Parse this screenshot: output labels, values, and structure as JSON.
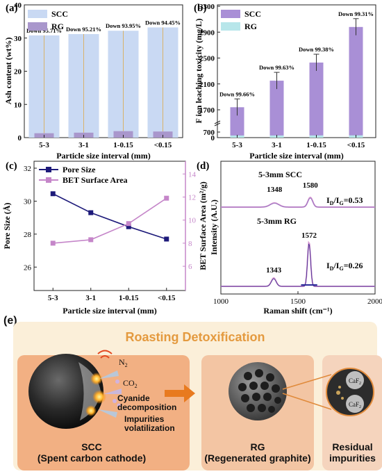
{
  "chart_data": [
    {
      "panel": "(a)",
      "type": "bar",
      "categories": [
        "5-3",
        "3-1",
        "1-0.15",
        "<0.15"
      ],
      "series": [
        {
          "name": "SCC",
          "values": [
            30.8,
            31.2,
            32.2,
            33.2
          ]
        },
        {
          "name": "RG",
          "values": [
            1.32,
            1.49,
            1.95,
            1.84
          ]
        }
      ],
      "annotations": [
        "Down 95.71%",
        "Down 95.21%",
        "Down 93.95%",
        "Down 94.45%"
      ],
      "xlabel": "Particle size interval (mm)",
      "ylabel": "Ash content (wt%)",
      "ylim": [
        0,
        40
      ],
      "yticks": [
        "0",
        "10",
        "20",
        "30",
        "40"
      ],
      "legend": "top-left"
    },
    {
      "panel": "(b)",
      "type": "bar",
      "categories": [
        "5-3",
        "3-1",
        "1-0.15",
        "<0.15"
      ],
      "series": [
        {
          "name": "SCC",
          "values": [
            1740,
            2150,
            2430,
            2980
          ]
        },
        {
          "name": "RG",
          "values": [
            5.9,
            8.0,
            15.1,
            20.6
          ]
        }
      ],
      "annotations": [
        "Down 99.66%",
        "Down 99.63%",
        "Down 99.38%",
        "Down 99.31%"
      ],
      "xlabel": "Particle size interval (mm)",
      "ylabel": "F ion leaching toxicity (mg/L)",
      "yticks": [
        "0",
        "700",
        "1700",
        "2100",
        "2500",
        "2900",
        "3300"
      ],
      "axis_break": true,
      "legend": "top-left"
    },
    {
      "panel": "(c)",
      "type": "line",
      "categories": [
        "5-3",
        "3-1",
        "1-0.15",
        "<0.15"
      ],
      "series": [
        {
          "name": "Pore Size",
          "values": [
            30.45,
            29.3,
            28.45,
            27.7
          ],
          "axis": "left"
        },
        {
          "name": "BET Surface Area",
          "values": [
            8.0,
            8.3,
            9.7,
            11.9
          ],
          "axis": "right"
        }
      ],
      "xlabel": "Particle size interval (mm)",
      "ylabel_left": "Pore Size (Å)",
      "ylabel_right": "BET Surface Area (m²/g)",
      "yticks_left": [
        "26",
        "28",
        "30",
        "32"
      ],
      "yticks_right": [
        "6",
        "8",
        "10",
        "12",
        "14"
      ],
      "legend": "top-left"
    },
    {
      "panel": "(d)",
      "type": "line",
      "xlabel": "Raman shift (cm⁻¹)",
      "ylabel": "Intensity (A.U.)",
      "xticks": [
        "1000",
        "1500",
        "2000"
      ],
      "spectra": [
        {
          "name": "5-3mm SCC",
          "peaks": [
            "1348",
            "1580"
          ],
          "ratio": "I",
          "ratio_sub1": "D",
          "ratio_mid": "/I",
          "ratio_sub2": "G",
          "ratio_val": "=0.53"
        },
        {
          "name": "5-3mm RG",
          "peaks": [
            "1343",
            "1572"
          ],
          "ratio": "I",
          "ratio_sub1": "D",
          "ratio_mid": "/I",
          "ratio_sub2": "G",
          "ratio_val": "=0.26"
        }
      ]
    }
  ],
  "panel_e": {
    "label": "(e)",
    "title": "Roasting Detoxification",
    "gases": [
      "N",
      "CO"
    ],
    "gas_sub": "2",
    "process_1": "Cyanide",
    "process_1b": "decomposition",
    "process_2": "Impurities",
    "process_2b": "volatilization",
    "scc_name": "SCC",
    "scc_full": "(Spent carbon cathode)",
    "rg_name": "RG",
    "rg_full": "(Regenerated graphite)",
    "residual": "Residual",
    "residual2": "impurities",
    "caf": "CaF",
    "caf_sub": "2"
  }
}
